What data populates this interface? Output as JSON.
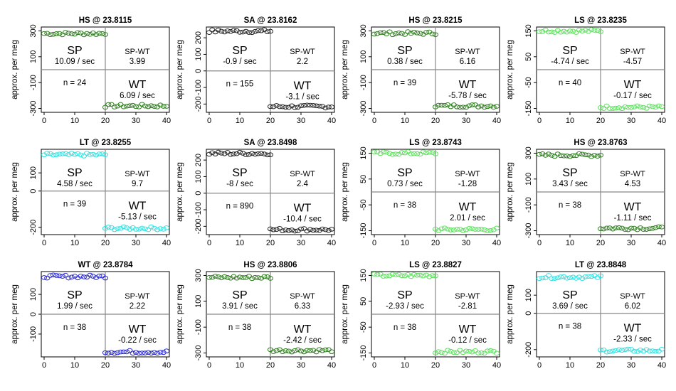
{
  "shared": {
    "ylabel": "approx. per meg",
    "xticks": [
      0,
      10,
      20,
      30,
      40
    ],
    "xlim": [
      0,
      40
    ],
    "sp_label": "SP",
    "wt_label": "WT",
    "spwt_label": "SP-WT",
    "rate_unit": "/ sec",
    "n_prefix": "n = "
  },
  "chart_data": [
    {
      "type": "scatter",
      "title": "HS @ 23.8115",
      "color": "#2e7d1e",
      "yticks": [
        300,
        100,
        -100,
        -300
      ],
      "ylim": [
        -330,
        330
      ],
      "sp_mean": 280,
      "wt_mean": -280,
      "sp_rate": "10.09",
      "wt_rate": "6.09",
      "diff": "3.99",
      "n": "24"
    },
    {
      "type": "scatter",
      "title": "SA @ 23.8162",
      "color": "#222222",
      "yticks": [
        200,
        100,
        0,
        -100,
        -200
      ],
      "ylim": [
        -250,
        265
      ],
      "sp_mean": 240,
      "wt_mean": -215,
      "sp_rate": "-0.9",
      "wt_rate": "-3.1",
      "diff": "2.2",
      "n": "155"
    },
    {
      "type": "scatter",
      "title": "HS @ 23.8215",
      "color": "#2e7d1e",
      "yticks": [
        300,
        100,
        -100,
        -300
      ],
      "ylim": [
        -330,
        330
      ],
      "sp_mean": 282,
      "wt_mean": -280,
      "sp_rate": "0.38",
      "wt_rate": "-5.78",
      "diff": "6.16",
      "n": "39"
    },
    {
      "type": "scatter",
      "title": "LS @ 23.8235",
      "color": "#5ee05e",
      "yticks": [
        150,
        50,
        -50,
        -150
      ],
      "ylim": [
        -165,
        165
      ],
      "sp_mean": 150,
      "wt_mean": -145,
      "sp_rate": "-4.74",
      "wt_rate": "-0.17",
      "diff": "-4.57",
      "n": "40"
    },
    {
      "type": "scatter",
      "title": "LT @ 23.8255",
      "color": "#33e0e0",
      "yticks": [
        100,
        0,
        -200
      ],
      "ylim": [
        -240,
        230
      ],
      "sp_mean": 200,
      "wt_mean": -205,
      "sp_rate": "4.58",
      "wt_rate": "-5.13",
      "diff": "9.7",
      "n": "39"
    },
    {
      "type": "scatter",
      "title": "SA @ 23.8498",
      "color": "#222222",
      "yticks": [
        200,
        100,
        0,
        -100,
        -200
      ],
      "ylim": [
        -250,
        265
      ],
      "sp_mean": 240,
      "wt_mean": -220,
      "sp_rate": "-8",
      "wt_rate": "-10.4",
      "diff": "2.4",
      "n": "890"
    },
    {
      "type": "scatter",
      "title": "LS @ 23.8743",
      "color": "#5ee05e",
      "yticks": [
        150,
        50,
        -50,
        -150
      ],
      "ylim": [
        -165,
        165
      ],
      "sp_mean": 150,
      "wt_mean": -145,
      "sp_rate": "0.73",
      "wt_rate": "2.01",
      "diff": "-1.28",
      "n": "38"
    },
    {
      "type": "scatter",
      "title": "HS @ 23.8763",
      "color": "#2e7d1e",
      "yticks": [
        300,
        100,
        -100,
        -300
      ],
      "ylim": [
        -330,
        330
      ],
      "sp_mean": 285,
      "wt_mean": -280,
      "sp_rate": "3.43",
      "wt_rate": "-1.11",
      "diff": "4.53",
      "n": "38"
    },
    {
      "type": "scatter",
      "title": "WT @ 23.8784",
      "color": "#2a2ad0",
      "yticks": [
        100,
        0,
        -100
      ],
      "ylim": [
        -215,
        215
      ],
      "sp_mean": 190,
      "wt_mean": -190,
      "sp_rate": "1.99",
      "wt_rate": "-0.22",
      "diff": "2.22",
      "n": "38"
    },
    {
      "type": "scatter",
      "title": "HS @ 23.8806",
      "color": "#2e7d1e",
      "yticks": [
        300,
        100,
        -100,
        -300
      ],
      "ylim": [
        -330,
        330
      ],
      "sp_mean": 285,
      "wt_mean": -280,
      "sp_rate": "3.91",
      "wt_rate": "-2.42",
      "diff": "6.33",
      "n": "38"
    },
    {
      "type": "scatter",
      "title": "LS @ 23.8827",
      "color": "#5ee05e",
      "yticks": [
        150,
        50,
        -50,
        -150
      ],
      "ylim": [
        -165,
        165
      ],
      "sp_mean": 150,
      "wt_mean": -145,
      "sp_rate": "-2.93",
      "wt_rate": "-0.12",
      "diff": "-2.81",
      "n": "38"
    },
    {
      "type": "scatter",
      "title": "LT @ 23.8848",
      "color": "#33e0e0",
      "yticks": [
        100,
        0,
        -200
      ],
      "ylim": [
        -240,
        230
      ],
      "sp_mean": 200,
      "wt_mean": -205,
      "sp_rate": "3.69",
      "wt_rate": "-2.33",
      "diff": "6.02",
      "n": "38"
    }
  ]
}
